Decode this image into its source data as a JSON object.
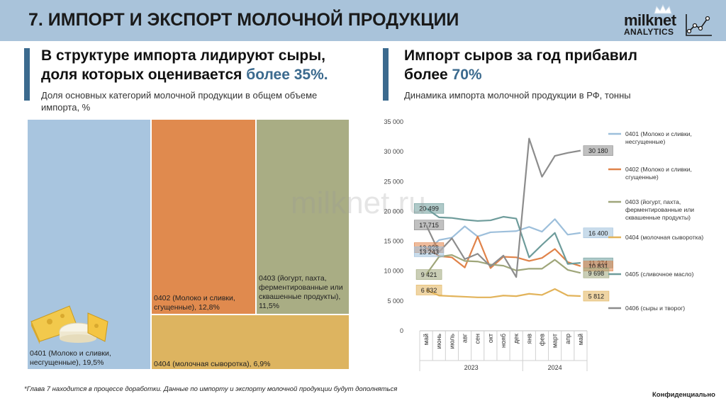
{
  "header": {
    "title": "7. ИМПОРТ И ЭКСПОРТ МОЛОЧНОЙ ПРОДУКЦИИ",
    "logo_name": "milknet",
    "logo_sub": "ANALYTICS"
  },
  "left": {
    "headline_line1": "В структуре импорта лидируют сыры,",
    "headline_line2_a": "доля которых оценивается ",
    "headline_line2_b": "более 35%.",
    "subtitle": "Доля основных категорий молочной продукции в общем объеме импорта, %",
    "treemap": [
      {
        "label": "0401 (Молоко и сливки, несгущенные), 19,5%",
        "color": "#a8c5df",
        "value": 19.5
      },
      {
        "label": "0402 (Молоко и сливки, сгущенные), 12,8%",
        "color": "#e08a4e",
        "value": 12.8
      },
      {
        "label": "0403 (йогурт, пахта, ферментированные или сквашенные продукты), 11,5%",
        "color": "#a9ad84",
        "value": 11.5
      },
      {
        "label": "0404 (молочная сыворотка), 6,9%",
        "color": "#ddb460",
        "value": 6.9
      }
    ],
    "cheese_icon": "cheese-icon"
  },
  "right": {
    "headline_line1": "Импорт сыров за год прибавил",
    "headline_line2_a": "более ",
    "headline_line2_b": "70%",
    "subtitle": "Динамика импорта молочной продукции в РФ, тонны"
  },
  "chart_data": {
    "type": "line",
    "title": "Динамика импорта молочной продукции в РФ, тонны",
    "ylim": [
      0,
      35000
    ],
    "yticks": [
      "0",
      "5 000",
      "10 000",
      "15 000",
      "20 000",
      "25 000",
      "30 000",
      "35 000"
    ],
    "categories": [
      "май",
      "июнь",
      "июль",
      "авг",
      "сен",
      "окт",
      "нояб",
      "дек",
      "янв",
      "фев",
      "март",
      "апр",
      "май"
    ],
    "years": [
      {
        "label": "2023",
        "from": 0,
        "to": 7
      },
      {
        "label": "2024",
        "from": 8,
        "to": 12
      }
    ],
    "series": [
      {
        "name": "0401 (Молоко и сливки, несгущенные)",
        "color": "#9dbfdb",
        "values": [
          13243,
          15200,
          15600,
          17500,
          15800,
          16500,
          16600,
          16700,
          17400,
          16600,
          18700,
          16100,
          16400
        ]
      },
      {
        "name": "0402 (Молоко и сливки, сгущенные)",
        "color": "#e0834a",
        "values": [
          13928,
          12500,
          12300,
          10600,
          15800,
          10500,
          12400,
          12300,
          11700,
          12200,
          13700,
          11500,
          10831
        ]
      },
      {
        "name": "0403 (йогурт, пахта, ферментированные или сквашенные продукты)",
        "color": "#9fa67a",
        "values": [
          9421,
          12400,
          12700,
          11700,
          11600,
          11100,
          10900,
          10100,
          10400,
          10400,
          11900,
          10200,
          9698
        ]
      },
      {
        "name": "0404 (молочная сыворотка)",
        "color": "#e2b35a",
        "values": [
          6832,
          5900,
          5800,
          5700,
          5600,
          5600,
          5900,
          5800,
          6200,
          6000,
          7000,
          5900,
          5812
        ]
      },
      {
        "name": "0405 (сливочное масло)",
        "color": "#6e9c9b",
        "values": [
          20499,
          19000,
          18900,
          18600,
          18400,
          18500,
          19100,
          18800,
          12300,
          14400,
          16400,
          11200,
          11374
        ]
      },
      {
        "name": "0406 (сыры и творог)",
        "color": "#8c8c8c",
        "values": [
          17715,
          13200,
          15500,
          12000,
          12900,
          10800,
          12600,
          9000,
          32200,
          25800,
          29300,
          29800,
          30180
        ]
      }
    ],
    "data_labels": [
      {
        "series": 4,
        "index": 0,
        "text": "20 499"
      },
      {
        "series": 5,
        "index": 0,
        "text": "17 715"
      },
      {
        "series": 1,
        "index": 0,
        "text": "13 928"
      },
      {
        "series": 0,
        "index": 0,
        "text": "13 243"
      },
      {
        "series": 2,
        "index": 0,
        "text": "9 421"
      },
      {
        "series": 3,
        "index": 0,
        "text": "6 832"
      },
      {
        "series": 5,
        "index": 12,
        "text": "30 180"
      },
      {
        "series": 0,
        "index": 12,
        "text": "16 400"
      },
      {
        "series": 4,
        "index": 12,
        "text": "11 374"
      },
      {
        "series": 1,
        "index": 12,
        "text": "10 831"
      },
      {
        "series": 2,
        "index": 12,
        "text": "9 698"
      },
      {
        "series": 3,
        "index": 12,
        "text": "5 812"
      }
    ]
  },
  "watermark": "milknet.ru",
  "footnote": "*Глава 7 находится в процессе доработки. Данные по импорту и экспорту молочной продукции будут дополняться",
  "confidential": "Конфиденциально"
}
